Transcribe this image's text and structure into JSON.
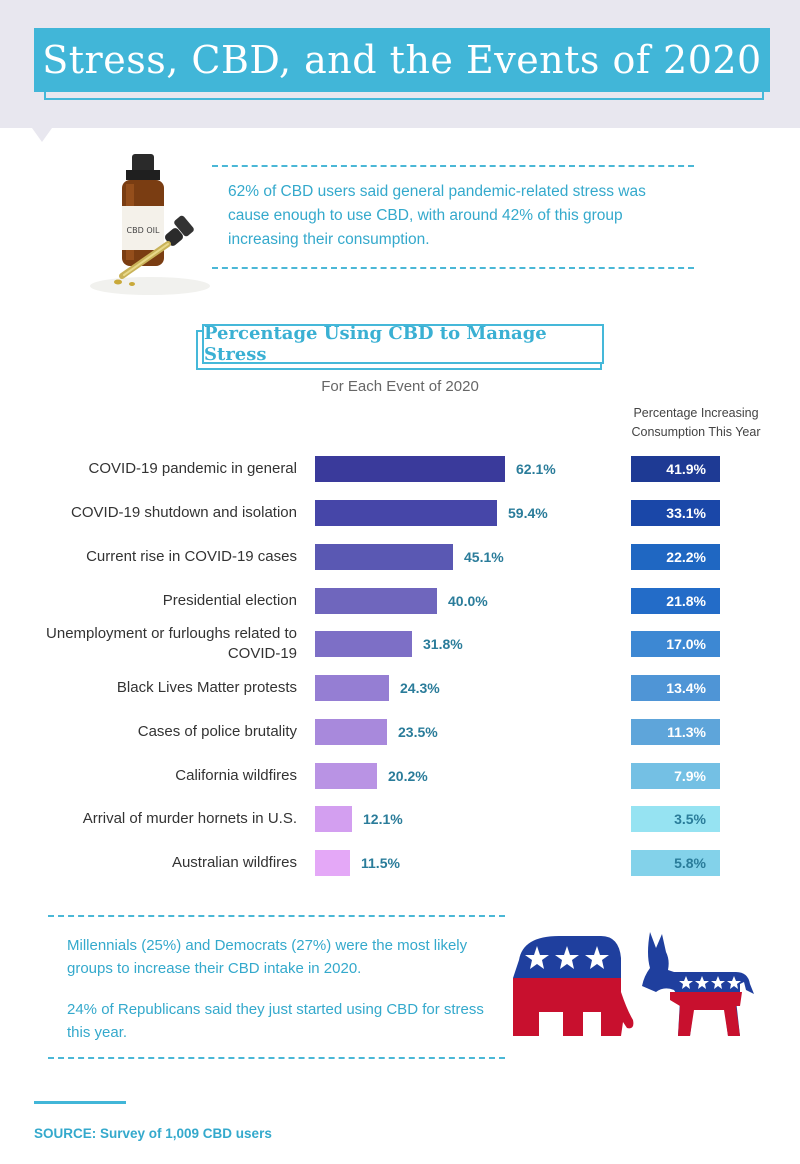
{
  "title": "Stress, CBD, and the Events of 2020",
  "intro": {
    "image_label": "CBD OIL",
    "text": "62% of CBD users said general pandemic-related stress was cause enough to use CBD, with around 42% of this group increasing their consumption."
  },
  "chart_data": {
    "type": "bar",
    "title": "Percentage Using CBD to Manage Stress",
    "subtitle": "For Each Event of 2020",
    "secondary_column_title": "Percentage Increasing Consumption This Year",
    "categories": [
      "COVID-19 pandemic in general",
      "COVID-19 shutdown and isolation",
      "Current rise in COVID-19 cases",
      "Presidential election",
      "Unemployment or furloughs related to COVID-19",
      "Black Lives Matter protests",
      "Cases of police brutality",
      "California wildfires",
      "Arrival of murder hornets in U.S.",
      "Australian wildfires"
    ],
    "series": [
      {
        "values": [
          62.1,
          59.4,
          45.1,
          40.0,
          31.8,
          24.3,
          23.5,
          20.2,
          12.1,
          11.5
        ],
        "labels": [
          "62.1%",
          "59.4%",
          "45.1%",
          "40.0%",
          "31.8%",
          "24.3%",
          "23.5%",
          "20.2%",
          "12.1%",
          "11.5%"
        ]
      },
      {
        "name": "Percentage Increasing Consumption This Year",
        "values": [
          41.9,
          33.1,
          22.2,
          21.8,
          17.0,
          13.4,
          11.3,
          7.9,
          3.5,
          5.8
        ],
        "labels": [
          "41.9%",
          "33.1%",
          "22.2%",
          "21.8%",
          "17.0%",
          "13.4%",
          "11.3%",
          "7.9%",
          "3.5%",
          "5.8%"
        ]
      }
    ],
    "bar_colors": [
      "#3a3a9b",
      "#4646a8",
      "#5a58b3",
      "#6f66bd",
      "#7d6fc6",
      "#957ed3",
      "#a889dc",
      "#b993e4",
      "#d39ff0",
      "#e4a8f7"
    ],
    "box_colors": [
      "#1e3a94",
      "#1a47a8",
      "#1f67c2",
      "#236cc8",
      "#3d88d3",
      "#4f95d6",
      "#5ea5da",
      "#74c0e4",
      "#96e3f2",
      "#83d2ea"
    ],
    "box_text_colors": [
      "#ffffff",
      "#ffffff",
      "#ffffff",
      "#ffffff",
      "#ffffff",
      "#ffffff",
      "#ffffff",
      "#ffffff",
      "#2a7c9a",
      "#2a7c9a"
    ],
    "xlim": [
      0,
      100
    ]
  },
  "notes": [
    "Millennials (25%) and Democrats (27%) were the most likely groups to increase their CBD intake in 2020.",
    "24% of Republicans said they just started using CBD for stress this year."
  ],
  "colors": {
    "accent": "#41b6d8",
    "republican_red": "#c8102e",
    "democrat_blue": "#1f3f9e"
  },
  "icons": [
    "cbd-oil-bottle-icon",
    "republican-elephant-icon",
    "democrat-donkey-icon"
  ],
  "source": "SOURCE: Survey of 1,009 CBD users"
}
